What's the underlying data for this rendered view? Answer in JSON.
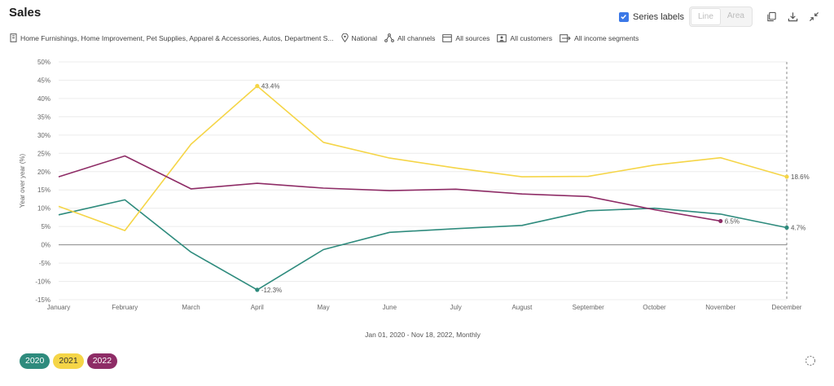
{
  "header": {
    "title": "Sales",
    "series_labels_text": "Series labels",
    "series_labels_checked": true,
    "view_toggle": [
      "Line",
      "Area"
    ],
    "icons": [
      "copy-icon",
      "download-icon",
      "collapse-icon"
    ]
  },
  "filters": [
    {
      "icon": "building-icon",
      "text": "Home Furnishings, Home Improvement, Pet Supplies, Apparel & Accessories, Autos, Department S..."
    },
    {
      "icon": "location-pin-icon",
      "text": "National"
    },
    {
      "icon": "channels-icon",
      "text": "All channels"
    },
    {
      "icon": "sources-icon",
      "text": "All sources"
    },
    {
      "icon": "customers-icon",
      "text": "All customers"
    },
    {
      "icon": "income-icon",
      "text": "All income segments"
    }
  ],
  "chart_data": {
    "type": "line",
    "categories": [
      "January",
      "February",
      "March",
      "April",
      "May",
      "June",
      "July",
      "August",
      "September",
      "October",
      "November",
      "December"
    ],
    "ylabel": "Year over year (%)",
    "ylim": [
      -15,
      50
    ],
    "yticks": [
      "50%",
      "45%",
      "40%",
      "35%",
      "30%",
      "25%",
      "20%",
      "15%",
      "10%",
      "5%",
      "0%",
      "-5%",
      "-10%",
      "-15%"
    ],
    "ytick_values": [
      50,
      45,
      40,
      35,
      30,
      25,
      20,
      15,
      10,
      5,
      0,
      -5,
      -10,
      -15
    ],
    "grid": true,
    "date_range": "Jan 01, 2020 - Nov 18, 2022, Monthly",
    "series": [
      {
        "name": "2020",
        "color": "#2e8b7d",
        "values": [
          8.2,
          12.3,
          -2.0,
          -12.3,
          -1.3,
          3.4,
          4.4,
          5.3,
          9.3,
          10.0,
          8.4,
          4.7
        ],
        "labels": [
          {
            "index": 3,
            "text": "-12.3%"
          },
          {
            "index": 11,
            "text": "4.7%"
          }
        ]
      },
      {
        "name": "2021",
        "color": "#f5d547",
        "values": [
          10.5,
          3.9,
          27.5,
          43.4,
          28.0,
          23.7,
          21.0,
          18.6,
          18.7,
          21.8,
          23.8,
          18.6
        ],
        "labels": [
          {
            "index": 3,
            "text": "43.4%"
          },
          {
            "index": 11,
            "text": "18.6%"
          }
        ]
      },
      {
        "name": "2022",
        "color": "#8e2c66",
        "values": [
          18.6,
          24.3,
          15.3,
          16.8,
          15.5,
          14.8,
          15.2,
          13.9,
          13.2,
          9.6,
          6.5,
          null
        ],
        "labels": [
          {
            "index": 10,
            "text": "6.5%"
          }
        ]
      }
    ]
  }
}
